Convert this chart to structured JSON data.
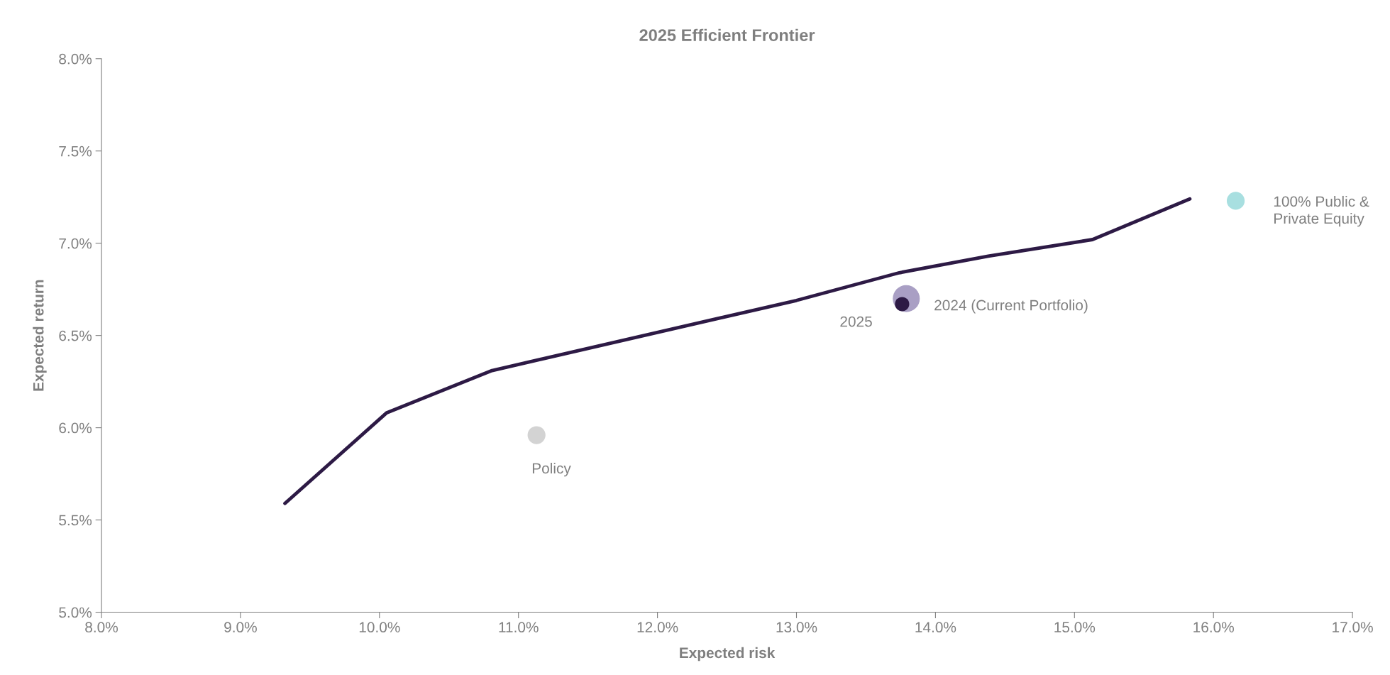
{
  "chart_data": {
    "type": "line",
    "title": "2025 Efficient Frontier",
    "xlabel": "Expected risk",
    "ylabel": "Expected return",
    "xlim": [
      8.0,
      17.0
    ],
    "ylim": [
      5.0,
      8.0
    ],
    "xticks": [
      {
        "value": 8,
        "label": "8.0%"
      },
      {
        "value": 9,
        "label": "9.0%"
      },
      {
        "value": 10,
        "label": "10.0%"
      },
      {
        "value": 11,
        "label": "11.0%"
      },
      {
        "value": 12,
        "label": "12.0%"
      },
      {
        "value": 13,
        "label": "13.0%"
      },
      {
        "value": 14,
        "label": "14.0%"
      },
      {
        "value": 15,
        "label": "15.0%"
      },
      {
        "value": 16,
        "label": "16.0%"
      },
      {
        "value": 17,
        "label": "17.0%"
      }
    ],
    "yticks": [
      {
        "value": 5.0,
        "label": "5.0%"
      },
      {
        "value": 5.5,
        "label": "5.5%"
      },
      {
        "value": 6.0,
        "label": "6.0%"
      },
      {
        "value": 6.5,
        "label": "6.5%"
      },
      {
        "value": 7.0,
        "label": "7.0%"
      },
      {
        "value": 7.5,
        "label": "7.5%"
      },
      {
        "value": 8.0,
        "label": "8.0%"
      }
    ],
    "grid": false,
    "legend": false,
    "line_style": "solid",
    "series": [
      {
        "marker": "none",
        "color": "#2d1a45",
        "x": [
          9.32,
          10.05,
          10.81,
          13.0,
          13.74,
          14.38,
          15.13,
          15.83
        ],
        "values": [
          5.59,
          6.08,
          6.31,
          6.69,
          6.84,
          6.93,
          7.02,
          7.24
        ]
      },
      {
        "type": "bubble",
        "marker": "circle",
        "name": "Policy",
        "color": "#d3d3d3",
        "x": [
          11.13
        ],
        "values": [
          5.96
        ],
        "sizes": [
          0.44
        ]
      },
      {
        "type": "bubble",
        "marker": "circle",
        "name": "2024 (Current Portfolio)",
        "color": "#a99fc4",
        "x": [
          13.79
        ],
        "values": [
          6.7
        ],
        "sizes": [
          1
        ]
      },
      {
        "type": "bubble",
        "marker": "circle",
        "name": "2025",
        "color": "#2d1a45",
        "x": [
          13.76
        ],
        "values": [
          6.67
        ],
        "sizes": [
          0.28
        ]
      },
      {
        "type": "bubble",
        "marker": "circle",
        "name": "100% Public &\nPrivate Equity",
        "color": "#a8dfe0",
        "x": [
          16.16
        ],
        "values": [
          7.23
        ],
        "sizes": [
          0.44
        ]
      }
    ]
  }
}
